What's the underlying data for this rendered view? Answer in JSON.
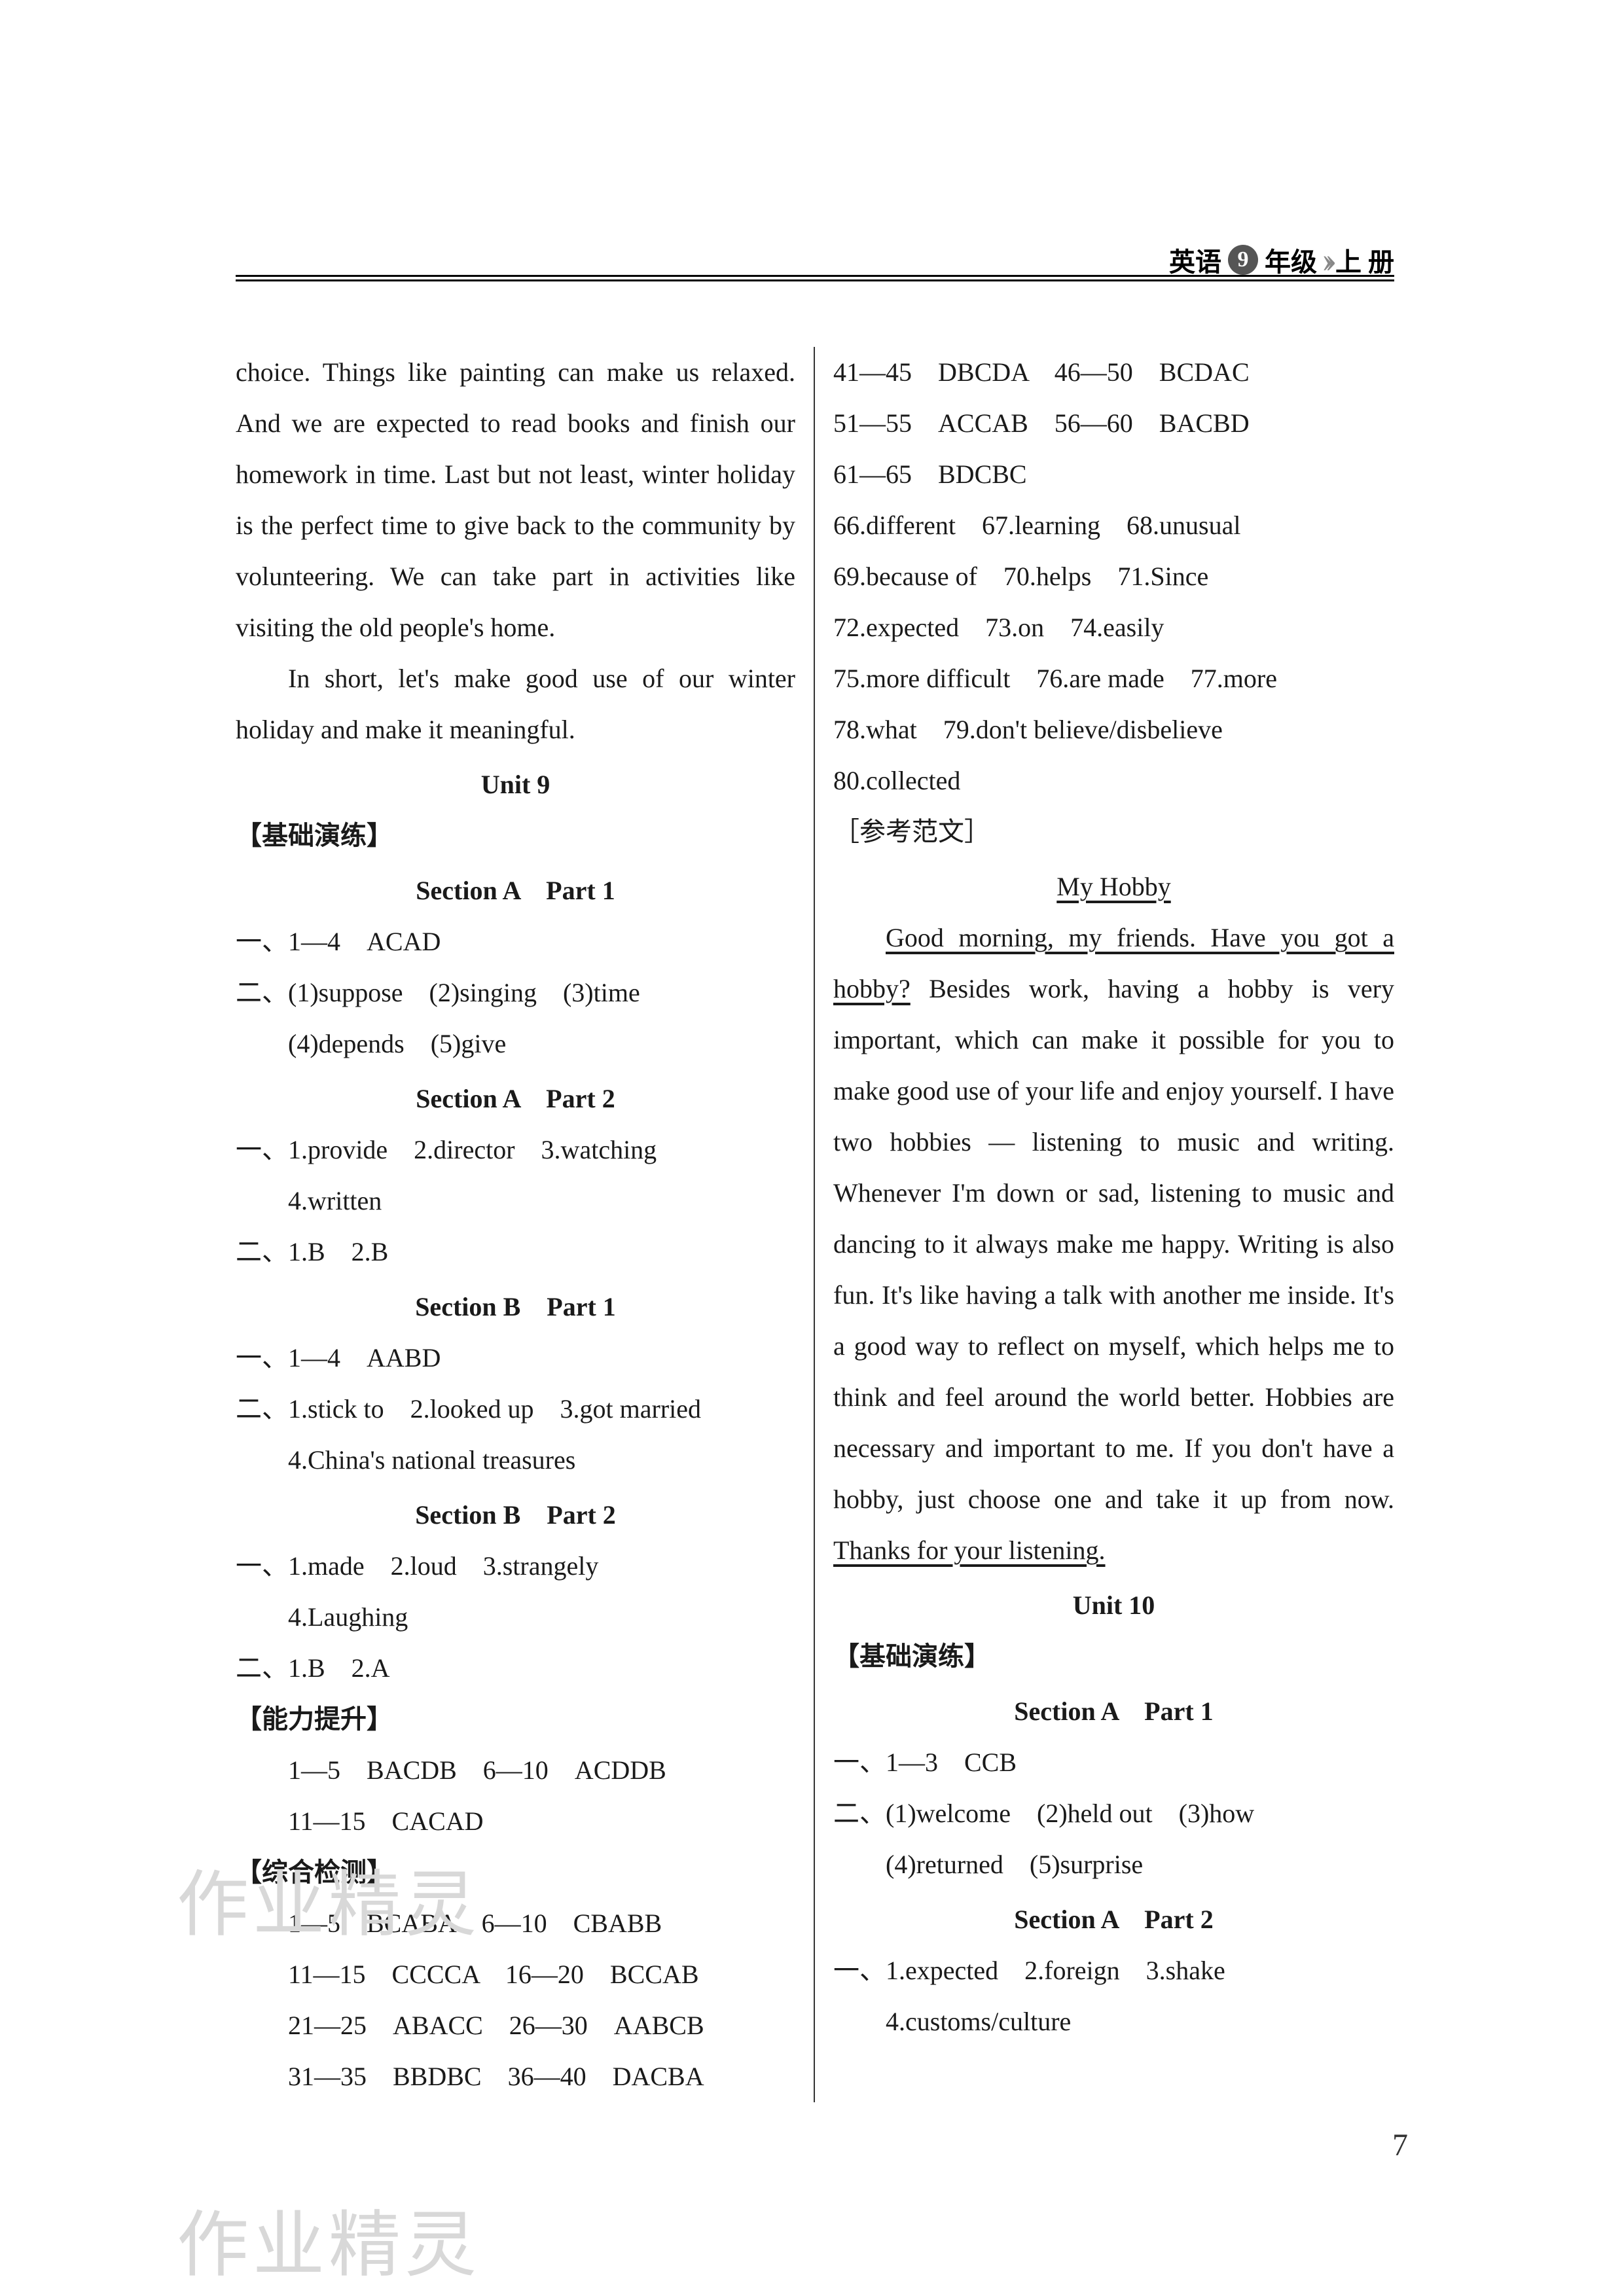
{
  "header": {
    "subject": "英语",
    "grade_num": "9",
    "grade_suffix": "年级",
    "volume": "上 册"
  },
  "left": {
    "essay_cont": "choice. Things like painting can make us relaxed. And we are expected to read books and finish our homework in time. Last but not least, winter holiday is the perfect time to give back to the community by volunteering. We can take part in activities like visiting the old people's home.",
    "essay_end": "In short, let's make good use of our winter holiday and make it meaningful.",
    "unit9": "Unit 9",
    "jichu": "【基础演练】",
    "secA1": "Section A　Part 1",
    "a1_line1": "一、1—4　ACAD",
    "a1_line2": "二、(1)suppose　(2)singing　(3)time",
    "a1_line3": "(4)depends　(5)give",
    "secA2": "Section A　Part 2",
    "a2_line1": "一、1.provide　2.director　3.watching",
    "a2_line2": "4.written",
    "a2_line3": "二、1.B　2.B",
    "secB1": "Section B　Part 1",
    "b1_line1": "一、1—4　AABD",
    "b1_line2": "二、1.stick to　2.looked up　3.got married",
    "b1_line3": "4.China's national treasures",
    "secB2": "Section B　Part 2",
    "b2_line1": "一、1.made　2.loud　3.strangely",
    "b2_line2": "4.Laughing",
    "b2_line3": "二、1.B　2.A",
    "nengli": "【能力提升】",
    "nl_line1": "1—5　BACDB　6—10　ACDDB",
    "nl_line2": "11—15　CACAD",
    "zonghe": "【综合检测】",
    "zh1": "1—5　BCABA　6—10　CBABB",
    "zh2": "11—15　CCCCA　16—20　BCCAB",
    "zh3": "21—25　ABACC　26—30　AABCB",
    "zh4": "31—35　BBDBC　36—40　DACBA"
  },
  "right": {
    "r1": "41—45　DBCDA　46—50　BCDAC",
    "r2": "51—55　ACCAB　56—60　BACBD",
    "r3": "61—65　BDCBC",
    "r4": "66.different　67.learning　68.unusual",
    "r5": "69.because of　70.helps　71.Since",
    "r6": "72.expected　73.on　74.easily",
    "r7": "75.more difficult　76.are made　77.more",
    "r8": "78.what　79.don't believe/disbelieve",
    "r9": "80.collected",
    "ref": "［参考范文］",
    "title": "My Hobby",
    "essay_open": "Good morning, my friends. Have you got a hobby?",
    "essay_body": " Besides work, having a hobby is very important, which can make it possible for you to make good use of your life and enjoy yourself. I have two hobbies — listening to music and writing. Whenever I'm down or sad, listening to music and dancing to it always make me happy. Writing is also fun. It's like having a talk with another me inside. It's a good way to reflect on myself, which helps me to think and feel around the world better. Hobbies are necessary and important to me. If you don't have a hobby, just choose one and take it up from now. ",
    "essay_close": "Thanks for your listening.",
    "unit10": "Unit 10",
    "jichu": "【基础演练】",
    "secA1": "Section A　Part 1",
    "a1_1": "一、1—3　CCB",
    "a1_2": "二、(1)welcome　(2)held out　(3)how",
    "a1_3": "(4)returned　(5)surprise",
    "secA2": "Section A　Part 2",
    "a2_1": "一、1.expected　2.foreign　3.shake",
    "a2_2": "4.customs/culture"
  },
  "page_number": "7",
  "watermark": "作业精灵"
}
